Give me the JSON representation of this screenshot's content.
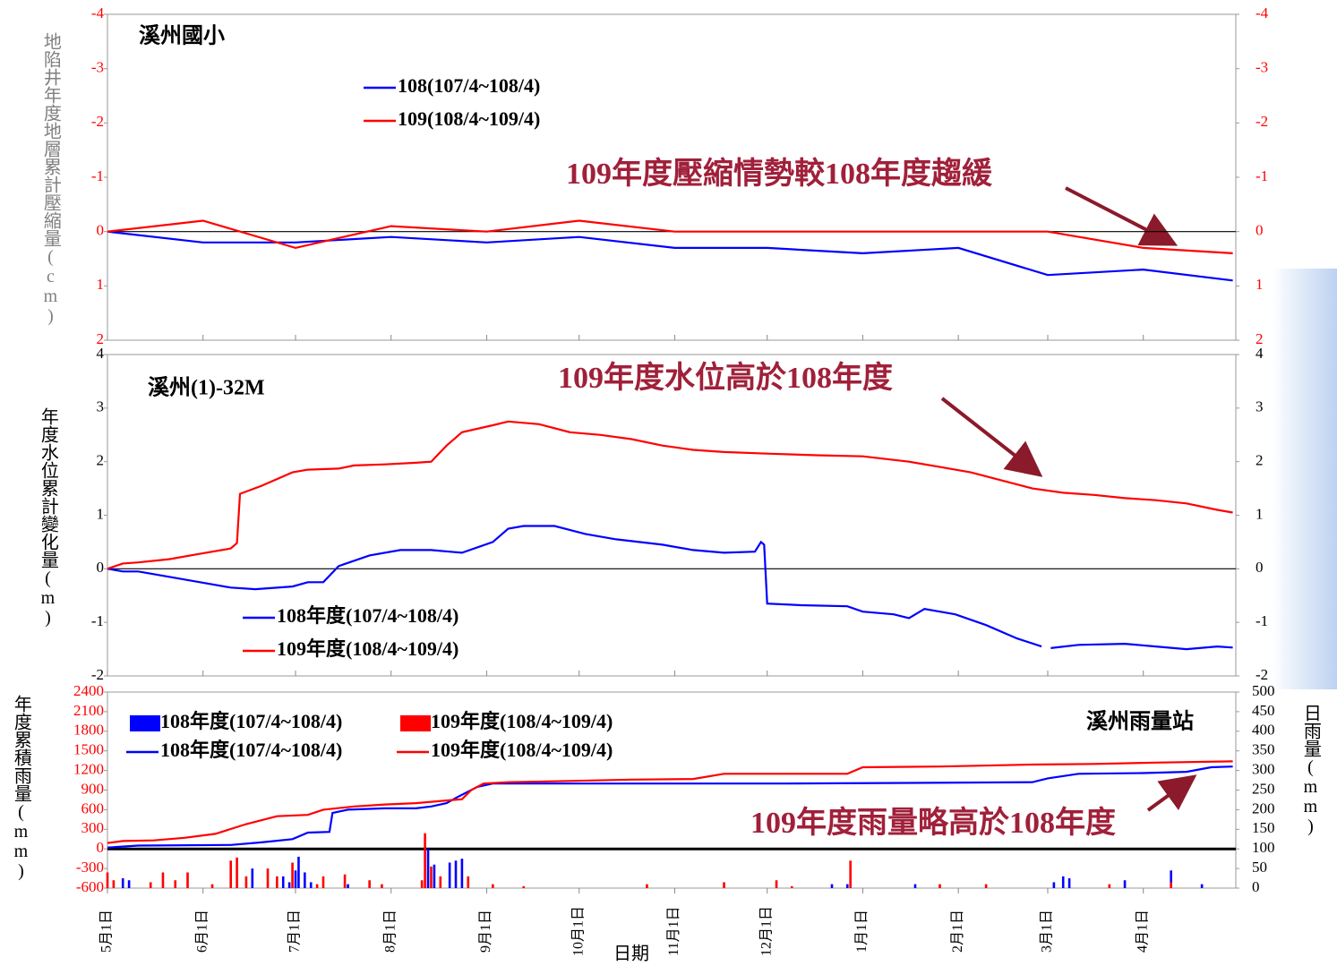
{
  "chart_data": [
    {
      "type": "line",
      "title": "溪州國小",
      "y_label": "地陷井年度地層累計壓縮量(cm)",
      "annotation": "109年度壓縮情勢較108年度趨緩",
      "xlim": [
        0,
        366
      ],
      "ylim": [
        -4,
        2
      ],
      "yticks": [
        -4,
        -3,
        -2,
        -1,
        0,
        1,
        2
      ],
      "y_inverted": true,
      "ytick_color": "#ff0000",
      "y2tick_color": "#ff0000",
      "series": [
        {
          "name": "108(107/4~108/4)",
          "color": "#0000ff",
          "x": [
            0,
            31,
            61,
            92,
            123,
            153,
            184,
            214,
            245,
            276,
            305,
            336,
            365
          ],
          "values": [
            0,
            0.2,
            0.2,
            0.1,
            0.2,
            0.1,
            0.3,
            0.3,
            0.4,
            0.3,
            0.8,
            0.7,
            0.9
          ]
        },
        {
          "name": "109(108/4~109/4)",
          "color": "#ff0000",
          "x": [
            0,
            31,
            61,
            92,
            123,
            153,
            184,
            214,
            245,
            276,
            305,
            336,
            365
          ],
          "values": [
            0,
            -0.2,
            0.3,
            -0.1,
            0,
            -0.2,
            0,
            0,
            0,
            0,
            0,
            0.3,
            0.4
          ]
        }
      ]
    },
    {
      "type": "line",
      "title": "溪州(1)-32M",
      "y_label": "年度水位累計變化量(m)",
      "annotation": "109年度水位高於108年度",
      "xlim": [
        0,
        366
      ],
      "ylim": [
        -2,
        4
      ],
      "yticks": [
        -2,
        -1,
        0,
        1,
        2,
        3,
        4
      ],
      "ytick_color": "#000000",
      "y2tick_color": "#000000",
      "series": [
        {
          "name": "108年度(107/4~108/4)",
          "color": "#0000ff",
          "x": [
            0,
            5,
            10,
            20,
            30,
            40,
            48,
            60,
            65,
            70,
            75,
            85,
            95,
            105,
            115,
            125,
            130,
            135,
            145,
            155,
            165,
            180,
            190,
            200,
            210,
            212,
            213,
            214,
            225,
            240,
            245,
            255,
            260,
            265,
            275,
            285,
            295,
            303,
            304,
            306,
            315,
            330,
            340,
            350,
            360,
            365
          ],
          "values": [
            0,
            -0.05,
            -0.05,
            -0.15,
            -0.25,
            -0.35,
            -0.38,
            -0.33,
            -0.25,
            -0.25,
            0.05,
            0.25,
            0.35,
            0.35,
            0.3,
            0.5,
            0.75,
            0.8,
            0.8,
            0.65,
            0.55,
            0.45,
            0.35,
            0.3,
            0.32,
            0.5,
            0.45,
            -0.65,
            -0.68,
            -0.7,
            -0.8,
            -0.85,
            -0.92,
            -0.75,
            -0.85,
            -1.05,
            -1.3,
            -1.45,
            null,
            -1.48,
            -1.42,
            -1.4,
            -1.45,
            -1.5,
            -1.45,
            -1.47
          ]
        },
        {
          "name": "109年度(108/4~109/4)",
          "color": "#ff0000",
          "x": [
            0,
            5,
            10,
            20,
            30,
            40,
            42,
            43,
            50,
            60,
            65,
            75,
            80,
            90,
            100,
            105,
            110,
            115,
            125,
            130,
            140,
            150,
            160,
            170,
            180,
            190,
            200,
            214,
            230,
            245,
            260,
            270,
            280,
            290,
            300,
            310,
            320,
            330,
            340,
            350,
            360,
            365
          ],
          "values": [
            0,
            0.1,
            0.12,
            0.18,
            0.28,
            0.38,
            0.48,
            1.4,
            1.55,
            1.8,
            1.85,
            1.87,
            1.93,
            1.95,
            1.98,
            2.0,
            2.3,
            2.55,
            2.68,
            2.75,
            2.7,
            2.55,
            2.5,
            2.42,
            2.3,
            2.22,
            2.18,
            2.15,
            2.12,
            2.1,
            2.0,
            1.9,
            1.8,
            1.65,
            1.5,
            1.42,
            1.38,
            1.32,
            1.28,
            1.22,
            1.1,
            1.05
          ]
        }
      ]
    },
    {
      "type": "combo",
      "title": "溪州雨量站",
      "y_label": "年度累積雨量(mm)",
      "y2_label": "日雨量(mm)",
      "x_label": "日期",
      "annotation": "109年度雨量略高於108年度",
      "xlim": [
        0,
        366
      ],
      "ylim": [
        -600,
        2400
      ],
      "yticks": [
        -600,
        -300,
        0,
        300,
        600,
        900,
        1200,
        1500,
        1800,
        2100,
        2400
      ],
      "ytick_color": "#ff0000",
      "y2lim": [
        0,
        500
      ],
      "y2ticks": [
        0,
        50,
        100,
        150,
        200,
        250,
        300,
        350,
        400,
        450,
        500
      ],
      "y2tick_color": "#000000",
      "xticks": [
        {
          "value": 0,
          "label": "5月1日"
        },
        {
          "value": 31,
          "label": "6月1日"
        },
        {
          "value": 61,
          "label": "7月1日"
        },
        {
          "value": 92,
          "label": "8月1日"
        },
        {
          "value": 123,
          "label": "9月1日"
        },
        {
          "value": 153,
          "label": "10月1日"
        },
        {
          "value": 184,
          "label": "11月1日"
        },
        {
          "value": 214,
          "label": "12月1日"
        },
        {
          "value": 245,
          "label": "1月1日"
        },
        {
          "value": 276,
          "label": "2月1日"
        },
        {
          "value": 305,
          "label": "3月1日"
        },
        {
          "value": 336,
          "label": "4月1日"
        }
      ],
      "series": [
        {
          "name": "108年度(107/4~108/4)",
          "type": "bar",
          "axis": "y2",
          "color": "#0000ff",
          "x": [
            5,
            7,
            47,
            57,
            59,
            61,
            62,
            64,
            66,
            78,
            104,
            106,
            111,
            113,
            115,
            235,
            240,
            262,
            307,
            310,
            312,
            330,
            345,
            355
          ],
          "values": [
            25,
            20,
            50,
            30,
            15,
            45,
            80,
            40,
            15,
            10,
            100,
            60,
            65,
            70,
            75,
            10,
            10,
            10,
            15,
            30,
            25,
            20,
            45,
            10
          ]
        },
        {
          "name": "109年度(108/4~109/4)",
          "type": "bar",
          "axis": "y2",
          "color": "#ff0000",
          "x": [
            0,
            2,
            14,
            18,
            22,
            26,
            34,
            40,
            42,
            45,
            52,
            55,
            60,
            68,
            70,
            77,
            85,
            89,
            102,
            103,
            105,
            108,
            117,
            125,
            135,
            175,
            200,
            217,
            222,
            241,
            270,
            285,
            325,
            345
          ],
          "values": [
            40,
            20,
            15,
            40,
            20,
            40,
            10,
            70,
            78,
            30,
            50,
            30,
            65,
            10,
            30,
            35,
            20,
            10,
            20,
            140,
            55,
            30,
            30,
            10,
            5,
            10,
            15,
            20,
            5,
            70,
            10,
            10,
            10,
            15
          ]
        },
        {
          "name": "108年度(107/4~108/4)",
          "type": "line",
          "axis": "y",
          "color": "#0000ff",
          "x": [
            0,
            10,
            40,
            50,
            60,
            65,
            72,
            73,
            78,
            90,
            100,
            105,
            110,
            113,
            120,
            125,
            220,
            260,
            300,
            305,
            315,
            336,
            350,
            358,
            365
          ],
          "values": [
            20,
            50,
            60,
            100,
            150,
            250,
            260,
            550,
            600,
            620,
            620,
            650,
            700,
            780,
            950,
            1000,
            1000,
            1010,
            1020,
            1080,
            1150,
            1160,
            1180,
            1250,
            1260
          ]
        },
        {
          "name": "109年度(108/4~109/4)",
          "type": "line",
          "axis": "y",
          "color": "#ff0000",
          "x": [
            0,
            5,
            15,
            25,
            35,
            45,
            55,
            65,
            70,
            80,
            90,
            100,
            105,
            115,
            118,
            122,
            130,
            150,
            170,
            190,
            200,
            240,
            245,
            270,
            300,
            320,
            340,
            365
          ],
          "values": [
            90,
            120,
            130,
            170,
            230,
            380,
            500,
            520,
            600,
            650,
            680,
            700,
            720,
            760,
            900,
            1000,
            1020,
            1040,
            1060,
            1070,
            1150,
            1150,
            1250,
            1260,
            1290,
            1300,
            1320,
            1340
          ]
        }
      ]
    }
  ]
}
